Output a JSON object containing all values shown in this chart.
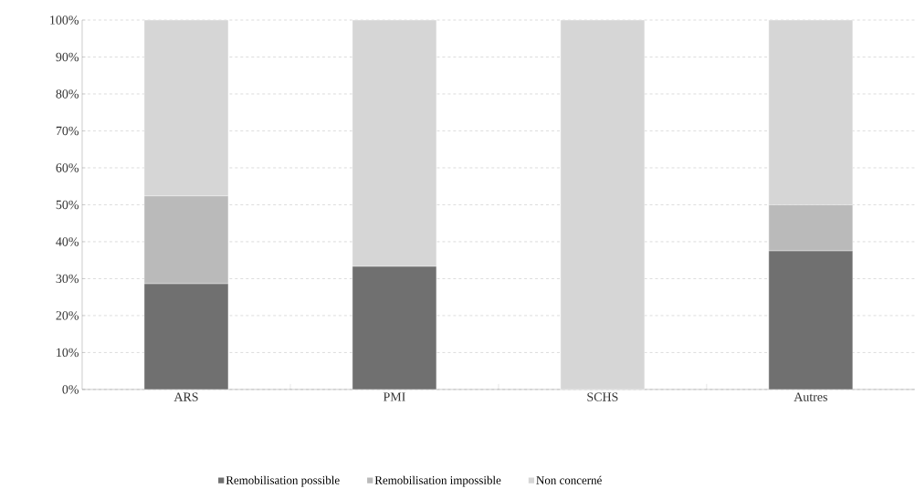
{
  "chart_data": {
    "type": "bar",
    "stacked": true,
    "categories": [
      "ARS",
      "PMI",
      "SCHS",
      "Autres"
    ],
    "series": [
      {
        "name": "Remobilisation possible",
        "color": "#707070",
        "values": [
          28.6,
          33.3,
          0,
          37.5
        ]
      },
      {
        "name": "Remobilisation impossible",
        "color": "#bababa",
        "values": [
          23.8,
          0,
          0,
          12.5
        ]
      },
      {
        "name": "Non concerné",
        "color": "#d6d6d6",
        "values": [
          47.6,
          66.7,
          100,
          50
        ]
      }
    ],
    "ylim": [
      0,
      100
    ],
    "yticks": [
      {
        "value": 0,
        "label": "0%"
      },
      {
        "value": 10,
        "label": "10%"
      },
      {
        "value": 20,
        "label": "20%"
      },
      {
        "value": 30,
        "label": "30%"
      },
      {
        "value": 40,
        "label": "40%"
      },
      {
        "value": 50,
        "label": "50%"
      },
      {
        "value": 60,
        "label": "60%"
      },
      {
        "value": 70,
        "label": "70%"
      },
      {
        "value": 80,
        "label": "80%"
      },
      {
        "value": 90,
        "label": "90%"
      },
      {
        "value": 100,
        "label": "100%"
      }
    ],
    "grid": "y",
    "legend": "bottom"
  }
}
